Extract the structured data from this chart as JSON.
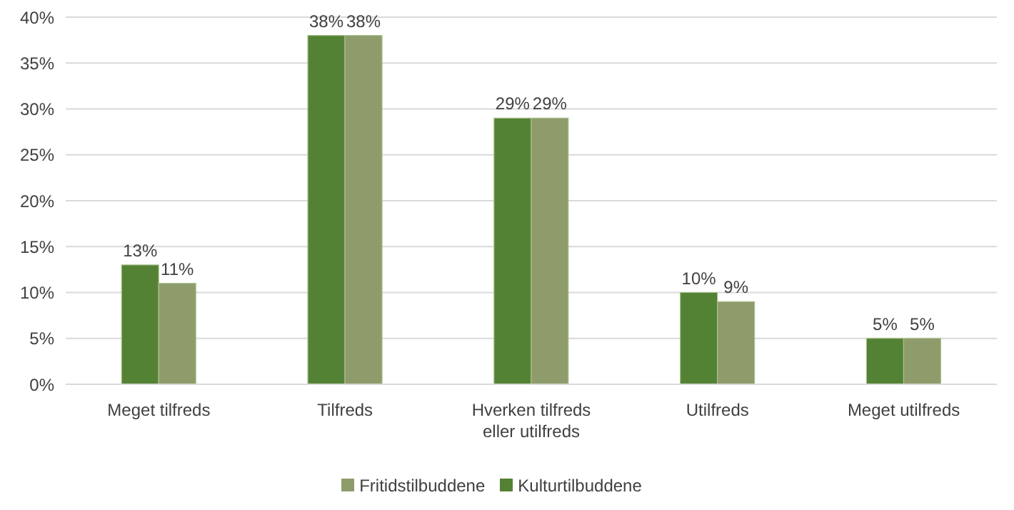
{
  "chart_data": {
    "type": "bar",
    "categories": [
      "Meget tilfreds",
      "Tilfreds",
      "Hverken tilfreds eller utilfreds",
      "Utilfreds",
      "Meget utilfreds"
    ],
    "series": [
      {
        "name": "Kulturtilbuddene",
        "color": "#548235",
        "values": [
          13,
          38,
          29,
          10,
          5
        ],
        "value_labels": [
          "13%",
          "38%",
          "29%",
          "10%",
          "5%"
        ]
      },
      {
        "name": "Fritidstilbuddene",
        "color": "#8e9c6b",
        "values": [
          11,
          38,
          29,
          9,
          5
        ],
        "value_labels": [
          "11%",
          "38%",
          "29%",
          "9%",
          "5%"
        ]
      }
    ],
    "ylim": [
      0,
      40
    ],
    "yticks": [
      {
        "value": 0,
        "label": "0%"
      },
      {
        "value": 5,
        "label": "5%"
      },
      {
        "value": 10,
        "label": "10%"
      },
      {
        "value": 15,
        "label": "15%"
      },
      {
        "value": 20,
        "label": "20%"
      },
      {
        "value": 25,
        "label": "25%"
      },
      {
        "value": 30,
        "label": "30%"
      },
      {
        "value": 35,
        "label": "35%"
      },
      {
        "value": 40,
        "label": "40%"
      }
    ],
    "grid": "y",
    "legend": "bottom"
  }
}
